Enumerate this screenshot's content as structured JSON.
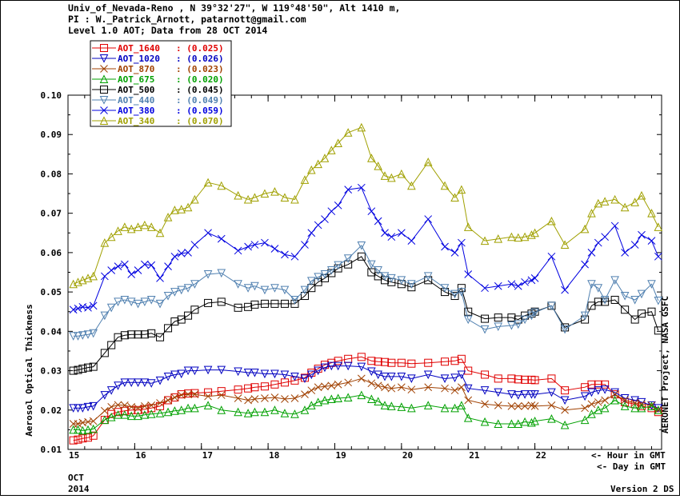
{
  "header": {
    "line1": "Univ_of_Nevada-Reno , N 39°32'27\", W 119°48'50\", Alt 1410 m,",
    "line2": "PI : W._Patrick_Arnott, patarnott@gmail.com",
    "line3": "Level 1.0 AOT; Data from 28 OCT 2014"
  },
  "footer": {
    "month": "OCT",
    "year": "2014",
    "hour_label": "<- Hour in GMT",
    "day_label": "<- Day in GMT",
    "version": "Version 2 DS",
    "side_label": "AERONET Project, NASA GSFC"
  },
  "chart_data": {
    "type": "line",
    "ylabel": "Aerosol Optical Thickness",
    "xlabel": "",
    "xlim": [
      15,
      23.9
    ],
    "ylim": [
      0.01,
      0.1
    ],
    "x_ticks": [
      15,
      16,
      17,
      18,
      19,
      20,
      21,
      22
    ],
    "x_tick_labels": [
      "15",
      "16",
      "17",
      "18",
      "19",
      "20",
      "21",
      "22"
    ],
    "y_ticks": [
      0.01,
      0.02,
      0.03,
      0.04,
      0.05,
      0.06,
      0.07,
      0.08,
      0.09,
      0.1
    ],
    "y_tick_labels": [
      "0.01",
      "0.02",
      "0.03",
      "0.04",
      "0.05",
      "0.06",
      "0.07",
      "0.08",
      "0.09",
      "0.10"
    ],
    "grid": false,
    "legend_position": "top-left",
    "x": [
      15.08,
      15.15,
      15.22,
      15.3,
      15.38,
      15.55,
      15.65,
      15.75,
      15.85,
      15.95,
      16.05,
      16.15,
      16.25,
      16.38,
      16.5,
      16.6,
      16.7,
      16.8,
      16.9,
      17.1,
      17.3,
      17.55,
      17.7,
      17.8,
      17.95,
      18.1,
      18.25,
      18.4,
      18.55,
      18.65,
      18.75,
      18.85,
      18.95,
      19.05,
      19.2,
      19.4,
      19.55,
      19.65,
      19.75,
      19.85,
      20.0,
      20.15,
      20.4,
      20.65,
      20.8,
      20.9,
      21.0,
      21.25,
      21.45,
      21.65,
      21.75,
      21.85,
      21.95,
      22.0,
      22.25,
      22.45,
      22.75,
      22.85,
      22.95,
      23.05,
      23.2,
      23.35,
      23.5,
      23.6,
      23.75,
      23.85
    ],
    "series": [
      {
        "name": "AOT_1640",
        "color": "#e00000",
        "marker": "square",
        "legend_value": "(0.025)",
        "values": [
          0.0123,
          0.0125,
          0.0128,
          0.013,
          0.0135,
          0.0175,
          0.019,
          0.0195,
          0.0198,
          0.02,
          0.02,
          0.0202,
          0.0205,
          0.021,
          0.0225,
          0.0232,
          0.024,
          0.0242,
          0.0243,
          0.0245,
          0.0248,
          0.0252,
          0.0255,
          0.0258,
          0.026,
          0.0265,
          0.027,
          0.0275,
          0.0282,
          0.0295,
          0.0305,
          0.0315,
          0.032,
          0.0325,
          0.033,
          0.0335,
          0.0325,
          0.0323,
          0.0322,
          0.032,
          0.032,
          0.0318,
          0.032,
          0.0323,
          0.0325,
          0.033,
          0.03,
          0.029,
          0.028,
          0.028,
          0.0278,
          0.0277,
          0.0277,
          0.0276,
          0.028,
          0.025,
          0.0258,
          0.0265,
          0.0265,
          0.0265,
          0.024,
          0.022,
          0.0215,
          0.021,
          0.0205,
          0.0195
        ]
      },
      {
        "name": "AOT_1020",
        "color": "#0000c0",
        "marker": "triangle-down",
        "legend_value": "(0.026)",
        "values": [
          0.0205,
          0.0205,
          0.0205,
          0.0208,
          0.021,
          0.0238,
          0.025,
          0.0262,
          0.027,
          0.027,
          0.027,
          0.027,
          0.0268,
          0.0275,
          0.0285,
          0.029,
          0.0292,
          0.03,
          0.03,
          0.0302,
          0.0302,
          0.0298,
          0.0295,
          0.0295,
          0.0292,
          0.0292,
          0.029,
          0.0285,
          0.028,
          0.029,
          0.03,
          0.0308,
          0.0312,
          0.0312,
          0.0312,
          0.031,
          0.0298,
          0.029,
          0.0285,
          0.0285,
          0.0285,
          0.028,
          0.029,
          0.028,
          0.0282,
          0.029,
          0.0255,
          0.025,
          0.0245,
          0.024,
          0.0238,
          0.024,
          0.024,
          0.024,
          0.0245,
          0.0225,
          0.0235,
          0.0245,
          0.025,
          0.0252,
          0.0245,
          0.023,
          0.0225,
          0.022,
          0.0212,
          0.0205
        ]
      },
      {
        "name": "AOT_870",
        "color": "#a04000",
        "marker": "x",
        "legend_value": "(0.023)",
        "values": [
          0.0165,
          0.0165,
          0.0168,
          0.017,
          0.0172,
          0.0198,
          0.0208,
          0.0213,
          0.0212,
          0.0208,
          0.0205,
          0.021,
          0.0212,
          0.0218,
          0.0225,
          0.0232,
          0.0238,
          0.024,
          0.024,
          0.0235,
          0.0238,
          0.023,
          0.0225,
          0.0228,
          0.023,
          0.0232,
          0.0228,
          0.023,
          0.024,
          0.025,
          0.0258,
          0.026,
          0.0262,
          0.0265,
          0.027,
          0.028,
          0.0268,
          0.0262,
          0.0258,
          0.0255,
          0.0258,
          0.0252,
          0.0258,
          0.0255,
          0.025,
          0.0258,
          0.0225,
          0.0215,
          0.0212,
          0.021,
          0.021,
          0.021,
          0.0212,
          0.021,
          0.0212,
          0.02,
          0.0205,
          0.0215,
          0.022,
          0.0225,
          0.024,
          0.0225,
          0.0218,
          0.0215,
          0.0212,
          0.02
        ]
      },
      {
        "name": "AOT_675",
        "color": "#00a000",
        "marker": "triangle-up",
        "legend_value": "(0.020)",
        "values": [
          0.015,
          0.015,
          0.0148,
          0.015,
          0.0152,
          0.0175,
          0.0182,
          0.0188,
          0.0188,
          0.0185,
          0.0185,
          0.0188,
          0.019,
          0.0192,
          0.0195,
          0.0198,
          0.02,
          0.0205,
          0.0205,
          0.0212,
          0.02,
          0.0195,
          0.0192,
          0.0195,
          0.0195,
          0.02,
          0.0192,
          0.019,
          0.02,
          0.0212,
          0.022,
          0.0225,
          0.0228,
          0.023,
          0.0232,
          0.0238,
          0.0228,
          0.0222,
          0.0212,
          0.021,
          0.0208,
          0.0205,
          0.0212,
          0.0205,
          0.0205,
          0.0212,
          0.018,
          0.017,
          0.0165,
          0.0165,
          0.0165,
          0.017,
          0.0168,
          0.0172,
          0.0178,
          0.0162,
          0.0175,
          0.019,
          0.02,
          0.0205,
          0.0225,
          0.021,
          0.0205,
          0.0205,
          0.021,
          0.02
        ]
      },
      {
        "name": "AOT_500",
        "color": "#000000",
        "marker": "square",
        "legend_value": "(0.045)",
        "values": [
          0.03,
          0.0302,
          0.0305,
          0.0308,
          0.031,
          0.0345,
          0.0365,
          0.0385,
          0.039,
          0.0392,
          0.0392,
          0.0392,
          0.0395,
          0.0385,
          0.0408,
          0.0425,
          0.043,
          0.044,
          0.0455,
          0.0472,
          0.0475,
          0.046,
          0.0462,
          0.0468,
          0.047,
          0.047,
          0.047,
          0.047,
          0.049,
          0.051,
          0.0525,
          0.0535,
          0.0548,
          0.056,
          0.057,
          0.059,
          0.055,
          0.054,
          0.053,
          0.0525,
          0.052,
          0.0512,
          0.053,
          0.05,
          0.049,
          0.051,
          0.045,
          0.0432,
          0.0435,
          0.0435,
          0.043,
          0.044,
          0.0445,
          0.045,
          0.0465,
          0.041,
          0.043,
          0.0465,
          0.0475,
          0.0475,
          0.048,
          0.0455,
          0.043,
          0.0445,
          0.045,
          0.0402
        ]
      },
      {
        "name": "AOT_440",
        "color": "#5080b0",
        "marker": "triangle-down",
        "legend_value": "(0.049)",
        "values": [
          0.0388,
          0.0388,
          0.039,
          0.0392,
          0.0395,
          0.044,
          0.046,
          0.0475,
          0.048,
          0.0475,
          0.047,
          0.0475,
          0.048,
          0.047,
          0.049,
          0.05,
          0.0505,
          0.051,
          0.052,
          0.0545,
          0.0548,
          0.052,
          0.051,
          0.0515,
          0.0505,
          0.051,
          0.0505,
          0.048,
          0.0505,
          0.0528,
          0.0538,
          0.0545,
          0.0555,
          0.0568,
          0.0585,
          0.0618,
          0.057,
          0.0555,
          0.054,
          0.0535,
          0.053,
          0.052,
          0.054,
          0.051,
          0.0495,
          0.05,
          0.043,
          0.0405,
          0.0412,
          0.0415,
          0.0418,
          0.043,
          0.044,
          0.0448,
          0.0465,
          0.0405,
          0.044,
          0.052,
          0.051,
          0.048,
          0.053,
          0.049,
          0.048,
          0.0495,
          0.052,
          0.0478
        ]
      },
      {
        "name": "AOT_380",
        "color": "#0000e0",
        "marker": "x",
        "legend_value": "(0.059)",
        "values": [
          0.0455,
          0.0458,
          0.0462,
          0.046,
          0.0465,
          0.054,
          0.0555,
          0.0565,
          0.057,
          0.0545,
          0.0555,
          0.057,
          0.0568,
          0.0535,
          0.0565,
          0.059,
          0.0598,
          0.06,
          0.062,
          0.065,
          0.0635,
          0.0605,
          0.0615,
          0.062,
          0.0625,
          0.061,
          0.0595,
          0.059,
          0.062,
          0.065,
          0.067,
          0.0685,
          0.0705,
          0.072,
          0.076,
          0.0765,
          0.0705,
          0.068,
          0.065,
          0.064,
          0.065,
          0.063,
          0.0685,
          0.0615,
          0.06,
          0.0625,
          0.0545,
          0.051,
          0.0515,
          0.052,
          0.0515,
          0.0525,
          0.053,
          0.0535,
          0.059,
          0.0505,
          0.057,
          0.06,
          0.0625,
          0.064,
          0.0668,
          0.06,
          0.062,
          0.0645,
          0.063,
          0.059
        ]
      },
      {
        "name": "AOT_340",
        "color": "#a0a000",
        "marker": "triangle-up",
        "legend_value": "(0.070)",
        "values": [
          0.052,
          0.0525,
          0.053,
          0.0535,
          0.054,
          0.0625,
          0.064,
          0.0655,
          0.0665,
          0.066,
          0.0665,
          0.067,
          0.0665,
          0.065,
          0.069,
          0.0708,
          0.071,
          0.0715,
          0.0735,
          0.0778,
          0.077,
          0.0745,
          0.0735,
          0.074,
          0.075,
          0.0755,
          0.074,
          0.0735,
          0.0785,
          0.081,
          0.0825,
          0.084,
          0.086,
          0.0878,
          0.0905,
          0.0918,
          0.084,
          0.082,
          0.0795,
          0.079,
          0.08,
          0.077,
          0.083,
          0.077,
          0.074,
          0.076,
          0.0665,
          0.063,
          0.0635,
          0.064,
          0.0638,
          0.064,
          0.0645,
          0.065,
          0.068,
          0.062,
          0.066,
          0.07,
          0.0725,
          0.073,
          0.0735,
          0.0715,
          0.0728,
          0.0745,
          0.07,
          0.0665
        ]
      }
    ]
  }
}
